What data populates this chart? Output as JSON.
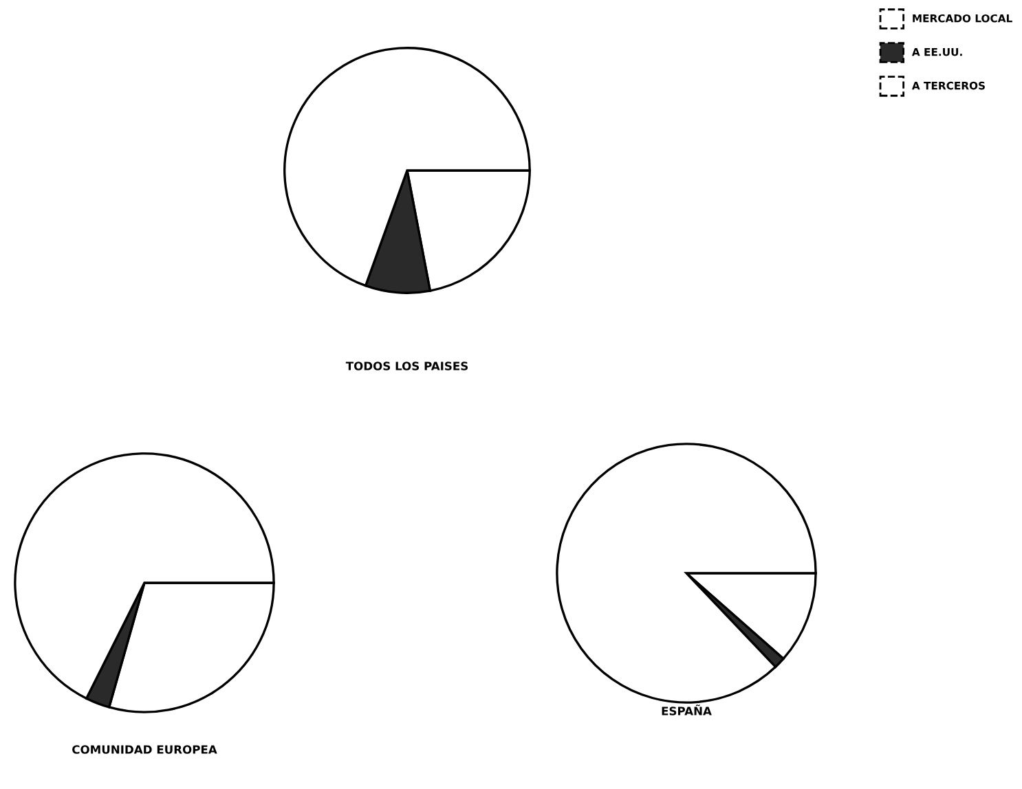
{
  "chart_data": [
    {
      "type": "pie",
      "title": "TODOS LOS PAISES",
      "categories": [
        "MERCADO LOCAL",
        "A EE.UU.",
        "A TERCEROS"
      ],
      "values": [
        69.5,
        8.5,
        22
      ],
      "colors": [
        "#ffffff",
        "#2a2a2a",
        "#ffffff"
      ],
      "legend": "top right"
    },
    {
      "type": "pie",
      "title": "COMUNIDAD EUROPEA",
      "categories": [
        null,
        null,
        null
      ],
      "values": [
        67.6,
        3,
        29.4
      ],
      "colors": [
        "#ffffff",
        "#2a2a2a",
        "#ffffff"
      ]
    },
    {
      "type": "pie",
      "title": "ESPAÑA",
      "categories": [
        null,
        null,
        null
      ],
      "values": [
        87.1,
        1.4,
        11.5
      ],
      "colors": [
        "#ffffff",
        "#2a2a2a",
        "#ffffff"
      ]
    }
  ]
}
